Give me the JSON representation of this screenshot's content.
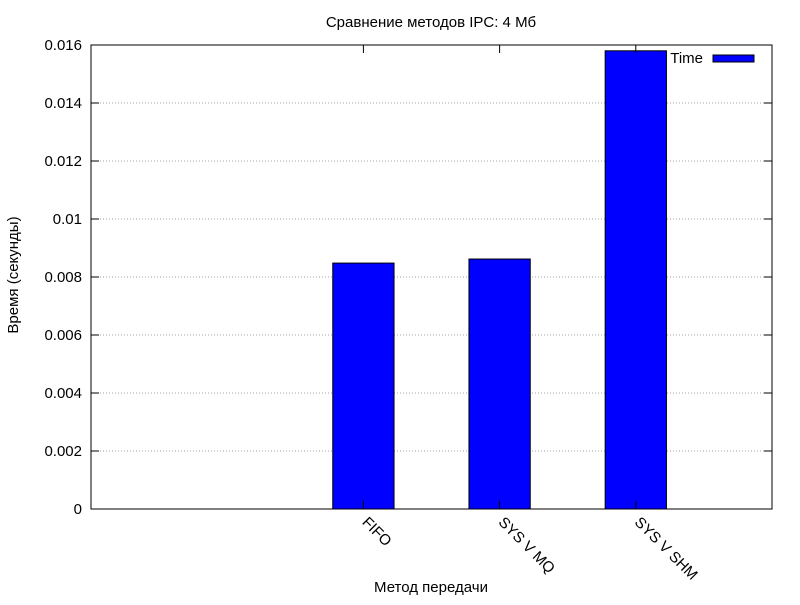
{
  "chart_data": {
    "type": "bar",
    "title": "Сравнение методов IPC: 4 Мб",
    "xlabel": "Метод передачи",
    "ylabel": "Время (секунды)",
    "categories": [
      "FIFO",
      "SYS V MQ",
      "SYS V SHM"
    ],
    "series": [
      {
        "name": "Time",
        "values": [
          0.00848,
          0.00862,
          0.0158
        ],
        "color": "#0000ff"
      }
    ],
    "ylim": [
      0,
      0.016
    ],
    "yticks": [
      "0",
      "0.002",
      "0.004",
      "0.006",
      "0.008",
      "0.01",
      "0.012",
      "0.014",
      "0.016"
    ],
    "grid": true,
    "legend": "top-right"
  }
}
